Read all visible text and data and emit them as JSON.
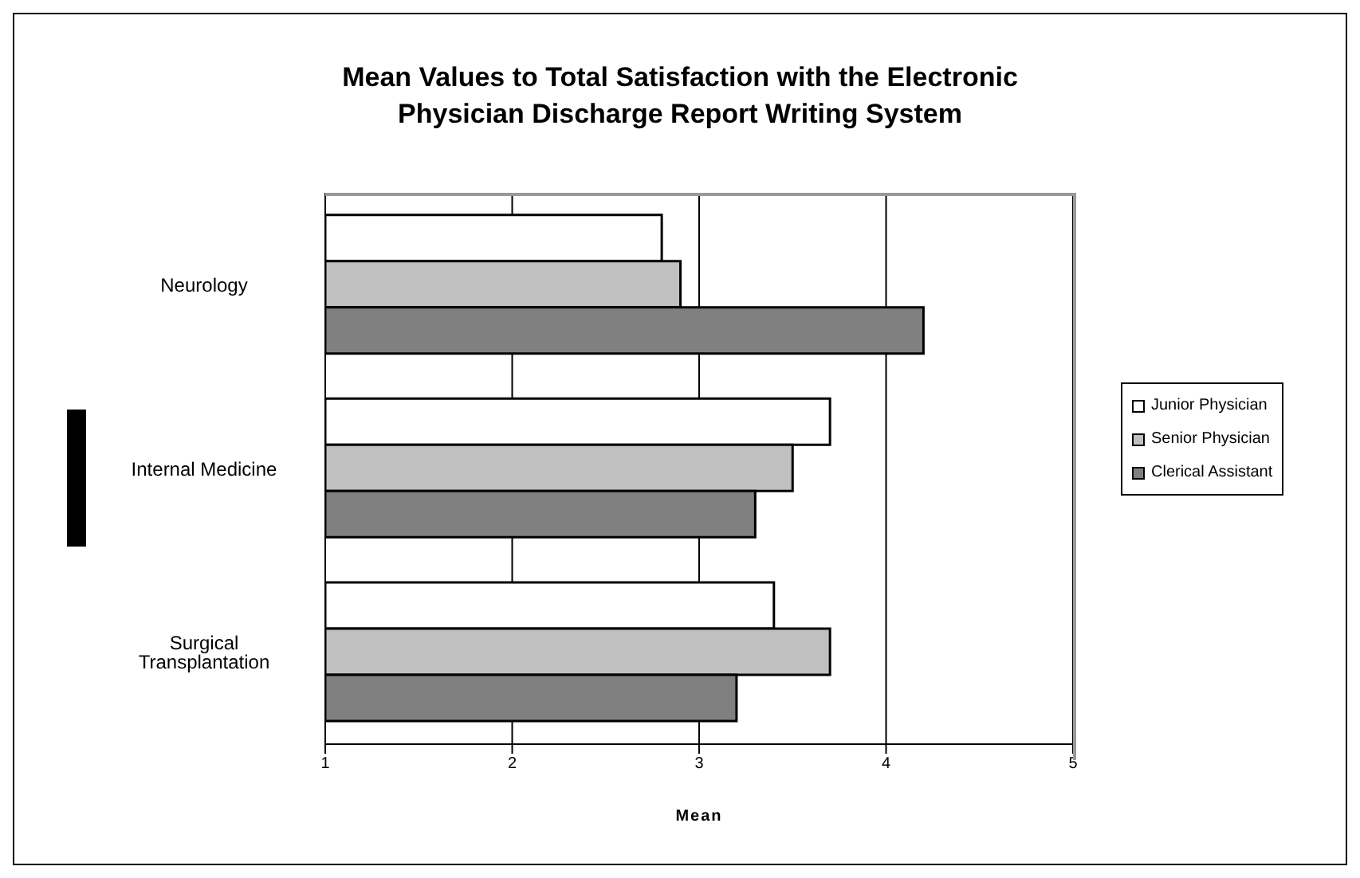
{
  "chart_data": {
    "type": "bar",
    "orientation": "horizontal",
    "title": "Mean Values to Total Satisfaction with the Electronic Physician Discharge Report Writing System",
    "xlabel": "Mean",
    "categories": [
      "Neurology",
      "Internal Medicine",
      "Surgical Transplantation"
    ],
    "series": [
      {
        "name": "Junior Physician",
        "color": "#ffffff",
        "values": [
          2.8,
          3.7,
          3.4
        ]
      },
      {
        "name": "Senior Physician",
        "color": "#c0c0c0",
        "values": [
          2.9,
          3.5,
          3.7
        ]
      },
      {
        "name": "Clerical Assistant",
        "color": "#808080",
        "values": [
          4.2,
          3.3,
          3.2
        ]
      }
    ],
    "xlim": [
      1,
      5
    ],
    "xticks": [
      1,
      2,
      3,
      4,
      5
    ],
    "grid": "x",
    "legend": "right"
  }
}
